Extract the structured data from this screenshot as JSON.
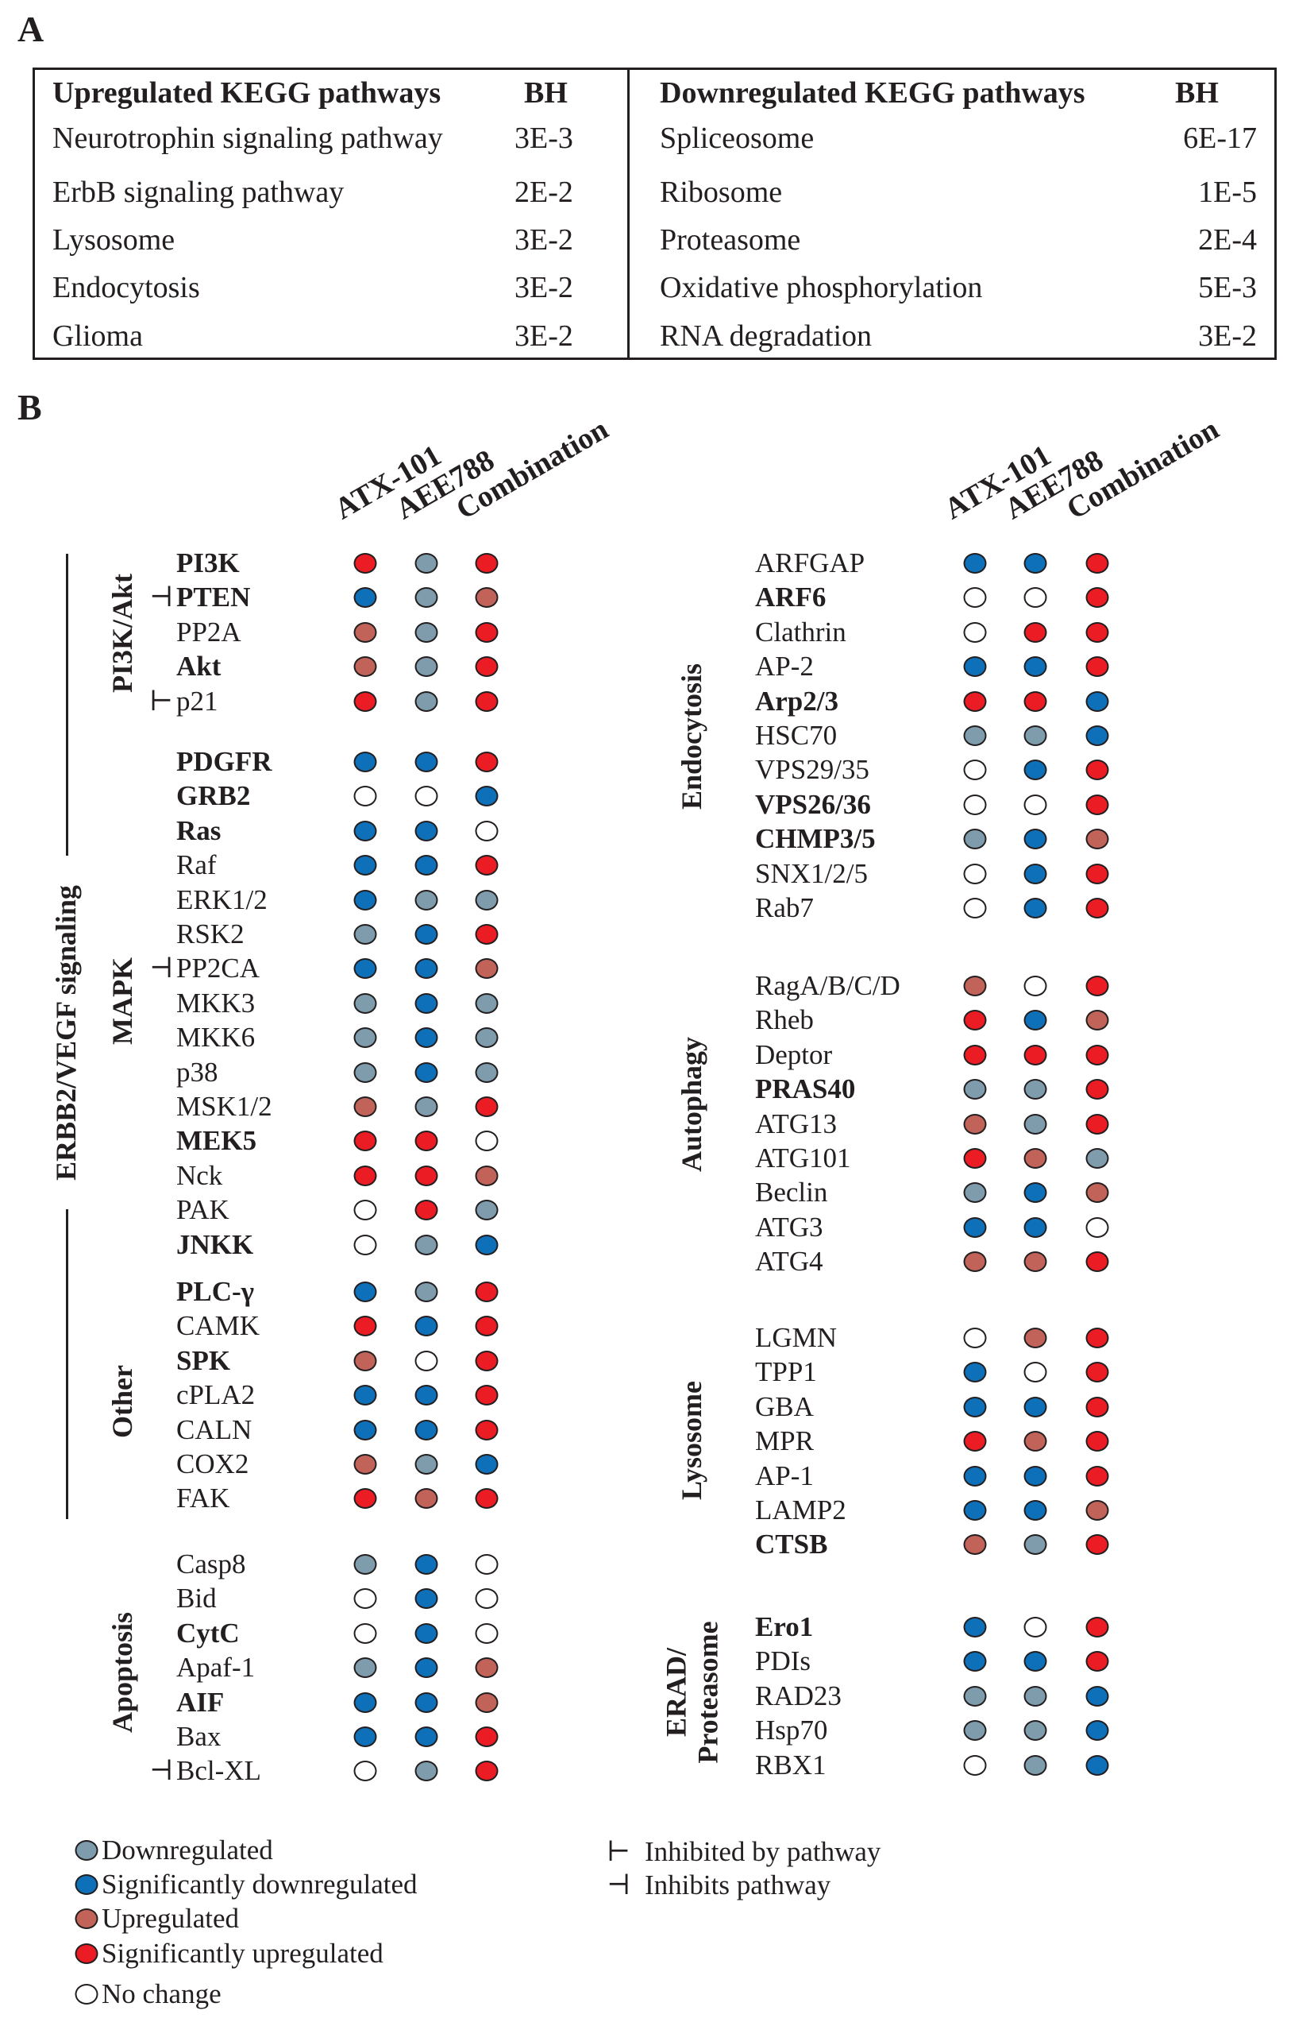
{
  "panel_a": {
    "letter": "A",
    "up_header": "Upregulated KEGG pathways",
    "down_header": "Downregulated KEGG pathways",
    "bh_header": "BH",
    "up_rows": [
      {
        "name": "Neurotrophin signaling pathway",
        "bh": "3E-3"
      },
      {
        "name": "ErbB signaling pathway",
        "bh": "2E-2"
      },
      {
        "name": "Lysosome",
        "bh": "3E-2"
      },
      {
        "name": "Endocytosis",
        "bh": "3E-2"
      },
      {
        "name": "Glioma",
        "bh": "3E-2"
      }
    ],
    "down_rows": [
      {
        "name": "Spliceosome",
        "bh": "6E-17"
      },
      {
        "name": "Ribosome",
        "bh": "1E-5"
      },
      {
        "name": "Proteasome",
        "bh": "2E-4"
      },
      {
        "name": "Oxidative phosphorylation",
        "bh": "5E-3"
      },
      {
        "name": "RNA degradation",
        "bh": "3E-2"
      }
    ]
  },
  "panel_b": {
    "letter": "B",
    "columns": [
      "ATX-101",
      "AEE788",
      "Combination"
    ],
    "super_group": "ERBB2/VEGF signaling",
    "colors": {
      "D": "#7f9cad",
      "SD": "#0f70ba",
      "U": "#c2635a",
      "SU": "#ec1c24",
      "N": "#ffffff"
    },
    "left_groups": [
      {
        "label": "PI3K/Akt",
        "items": [
          {
            "name": "PI3K",
            "bold": true,
            "v": [
              "SU",
              "D",
              "SU"
            ]
          },
          {
            "name": "PTEN",
            "bold": true,
            "sym": "⊣",
            "v": [
              "SD",
              "D",
              "U"
            ]
          },
          {
            "name": "PP2A",
            "v": [
              "U",
              "D",
              "SU"
            ]
          },
          {
            "name": "Akt",
            "bold": true,
            "v": [
              "U",
              "D",
              "SU"
            ]
          },
          {
            "name": "p21",
            "sym": "⊢",
            "v": [
              "SU",
              "D",
              "SU"
            ]
          }
        ]
      },
      {
        "label": "MAPK",
        "items": [
          {
            "name": "PDGFR",
            "bold": true,
            "v": [
              "SD",
              "SD",
              "SU"
            ]
          },
          {
            "name": "GRB2",
            "bold": true,
            "v": [
              "N",
              "N",
              "SD"
            ]
          },
          {
            "name": "Ras",
            "bold": true,
            "v": [
              "SD",
              "SD",
              "N"
            ]
          },
          {
            "name": "Raf",
            "v": [
              "SD",
              "SD",
              "SU"
            ]
          },
          {
            "name": "ERK1/2",
            "v": [
              "SD",
              "D",
              "D"
            ]
          },
          {
            "name": "RSK2",
            "v": [
              "D",
              "SD",
              "SU"
            ]
          },
          {
            "name": "PP2CA",
            "sym": "⊣",
            "v": [
              "SD",
              "SD",
              "U"
            ]
          },
          {
            "name": "MKK3",
            "v": [
              "D",
              "SD",
              "D"
            ]
          },
          {
            "name": "MKK6",
            "v": [
              "D",
              "SD",
              "D"
            ]
          },
          {
            "name": "p38",
            "v": [
              "D",
              "SD",
              "D"
            ]
          },
          {
            "name": "MSK1/2",
            "v": [
              "U",
              "D",
              "SU"
            ]
          },
          {
            "name": "MEK5",
            "bold": true,
            "v": [
              "SU",
              "SU",
              "N"
            ]
          },
          {
            "name": "Nck",
            "v": [
              "SU",
              "SU",
              "U"
            ]
          },
          {
            "name": "PAK",
            "v": [
              "N",
              "SU",
              "D"
            ]
          },
          {
            "name": "JNKK",
            "bold": true,
            "v": [
              "N",
              "D",
              "SD"
            ]
          }
        ]
      },
      {
        "label": "Other",
        "items": [
          {
            "name": "PLC-γ",
            "bold": true,
            "v": [
              "SD",
              "D",
              "SU"
            ]
          },
          {
            "name": "CAMK",
            "v": [
              "SU",
              "SD",
              "SU"
            ]
          },
          {
            "name": "SPK",
            "bold": true,
            "v": [
              "U",
              "N",
              "SU"
            ]
          },
          {
            "name": "cPLA2",
            "v": [
              "SD",
              "SD",
              "SU"
            ]
          },
          {
            "name": "CALN",
            "v": [
              "SD",
              "SD",
              "SU"
            ]
          },
          {
            "name": "COX2",
            "v": [
              "U",
              "D",
              "SD"
            ]
          },
          {
            "name": "FAK",
            "v": [
              "SU",
              "U",
              "SU"
            ]
          }
        ]
      },
      {
        "label": "Apoptosis",
        "items": [
          {
            "name": "Casp8",
            "v": [
              "D",
              "SD",
              "N"
            ]
          },
          {
            "name": "Bid",
            "v": [
              "N",
              "SD",
              "N"
            ]
          },
          {
            "name": "CytC",
            "bold": true,
            "v": [
              "N",
              "SD",
              "N"
            ]
          },
          {
            "name": "Apaf-1",
            "v": [
              "D",
              "SD",
              "U"
            ]
          },
          {
            "name": "AIF",
            "bold": true,
            "v": [
              "SD",
              "SD",
              "U"
            ]
          },
          {
            "name": "Bax",
            "v": [
              "SD",
              "SD",
              "SU"
            ]
          },
          {
            "name": "Bcl-XL",
            "sym": "⊣",
            "v": [
              "N",
              "D",
              "SU"
            ]
          }
        ]
      }
    ],
    "right_groups": [
      {
        "label": "Endocytosis",
        "items": [
          {
            "name": "ARFGAP",
            "v": [
              "SD",
              "SD",
              "SU"
            ]
          },
          {
            "name": "ARF6",
            "bold": true,
            "v": [
              "N",
              "N",
              "SU"
            ]
          },
          {
            "name": "Clathrin",
            "v": [
              "N",
              "SU",
              "SU"
            ]
          },
          {
            "name": "AP-2",
            "v": [
              "SD",
              "SD",
              "SU"
            ]
          },
          {
            "name": "Arp2/3",
            "bold": true,
            "v": [
              "SU",
              "SU",
              "SD"
            ]
          },
          {
            "name": "HSC70",
            "v": [
              "D",
              "D",
              "SD"
            ]
          },
          {
            "name": "VPS29/35",
            "v": [
              "N",
              "SD",
              "SU"
            ]
          },
          {
            "name": "VPS26/36",
            "bold": true,
            "v": [
              "N",
              "N",
              "SU"
            ]
          },
          {
            "name": "CHMP3/5",
            "bold": true,
            "v": [
              "D",
              "SD",
              "U"
            ]
          },
          {
            "name": "SNX1/2/5",
            "v": [
              "N",
              "SD",
              "SU"
            ]
          },
          {
            "name": "Rab7",
            "v": [
              "N",
              "SD",
              "SU"
            ]
          }
        ]
      },
      {
        "label": "Autophagy",
        "items": [
          {
            "name": "RagA/B/C/D",
            "v": [
              "U",
              "N",
              "SU"
            ]
          },
          {
            "name": "Rheb",
            "v": [
              "SU",
              "SD",
              "U"
            ]
          },
          {
            "name": "Deptor",
            "v": [
              "SU",
              "SU",
              "SU"
            ]
          },
          {
            "name": "PRAS40",
            "bold": true,
            "v": [
              "D",
              "D",
              "SU"
            ]
          },
          {
            "name": "ATG13",
            "v": [
              "U",
              "D",
              "SU"
            ]
          },
          {
            "name": "ATG101",
            "v": [
              "SU",
              "U",
              "D"
            ]
          },
          {
            "name": "Beclin",
            "v": [
              "D",
              "SD",
              "U"
            ]
          },
          {
            "name": "ATG3",
            "v": [
              "SD",
              "SD",
              "N"
            ]
          },
          {
            "name": "ATG4",
            "v": [
              "U",
              "U",
              "SU"
            ]
          }
        ]
      },
      {
        "label": "Lysosome",
        "items": [
          {
            "name": "LGMN",
            "v": [
              "N",
              "U",
              "SU"
            ]
          },
          {
            "name": "TPP1",
            "v": [
              "SD",
              "N",
              "SU"
            ]
          },
          {
            "name": "GBA",
            "v": [
              "SD",
              "SD",
              "SU"
            ]
          },
          {
            "name": "MPR",
            "v": [
              "SU",
              "U",
              "SU"
            ]
          },
          {
            "name": "AP-1",
            "v": [
              "SD",
              "SD",
              "SU"
            ]
          },
          {
            "name": "LAMP2",
            "v": [
              "SD",
              "SD",
              "U"
            ]
          },
          {
            "name": "CTSB",
            "bold": true,
            "v": [
              "U",
              "D",
              "SU"
            ]
          }
        ]
      },
      {
        "label": "ERAD/ Proteasome",
        "items": [
          {
            "name": "Ero1",
            "bold": true,
            "v": [
              "SD",
              "N",
              "SU"
            ]
          },
          {
            "name": "PDIs",
            "v": [
              "SD",
              "SD",
              "SU"
            ]
          },
          {
            "name": "RAD23",
            "v": [
              "D",
              "D",
              "SD"
            ]
          },
          {
            "name": "Hsp70",
            "v": [
              "D",
              "D",
              "SD"
            ]
          },
          {
            "name": "RBX1",
            "v": [
              "N",
              "D",
              "SD"
            ]
          }
        ]
      }
    ],
    "legend": [
      {
        "code": "D",
        "label": "Downregulated"
      },
      {
        "code": "SD",
        "label": "Significantly downregulated"
      },
      {
        "code": "U",
        "label": "Upregulated"
      },
      {
        "code": "SU",
        "label": "Significantly upregulated"
      },
      {
        "code": "N",
        "label": "No change"
      }
    ],
    "symbol_legend": [
      {
        "sym": "⊢",
        "label": "Inhibited by pathway"
      },
      {
        "sym": "⊣",
        "label": "Inhibits pathway"
      }
    ]
  }
}
